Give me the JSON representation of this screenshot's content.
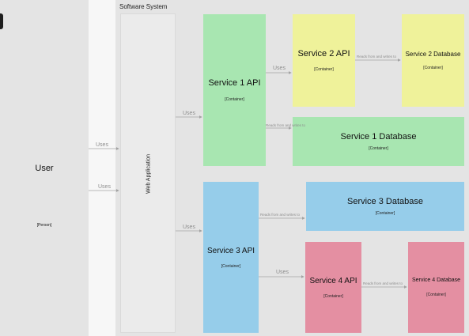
{
  "boundary": {
    "label": "Software System"
  },
  "nodes": {
    "user": {
      "title": "User",
      "sub": "[Person]"
    },
    "web_app": {
      "title": "Web Application"
    },
    "service1_api": {
      "title": "Service 1 API",
      "sub": "[Container]"
    },
    "service2_api": {
      "title": "Service 2 API",
      "sub": "[Container]"
    },
    "service2_db": {
      "title": "Service 2 Database",
      "sub": "[Container]"
    },
    "service1_db": {
      "title": "Service 1 Database",
      "sub": "[Container]"
    },
    "service3_db": {
      "title": "Service 3 Database",
      "sub": "[Container]"
    },
    "service3_api": {
      "title": "Service 3 API",
      "sub": "[Container]"
    },
    "service4_api": {
      "title": "Service 4 API",
      "sub": "[Container]"
    },
    "service4_db": {
      "title": "Service 4 Database",
      "sub": "[Container]"
    }
  },
  "edges": {
    "user_web_1": "Uses",
    "user_web_2": "Uses",
    "web_s1": "Uses",
    "web_s3": "Uses",
    "s1_s2": "Uses",
    "s1_s1db": "Reads from and writes to",
    "s2_s2db": "Reads from and writes to",
    "s3_s3db": "Reads from and writes to",
    "s3_s4": "Uses",
    "s4_s4db": "Reads from and writes to"
  },
  "colors": {
    "canvas": "#e4e4e4",
    "boundary_panel": "#f7f7f7",
    "web_app": "#ebebeb",
    "green": "#a8e6b1",
    "yellow": "#eff29a",
    "blue": "#96cdea",
    "pink": "#e48fa2",
    "edge": "#a3a3a3"
  }
}
